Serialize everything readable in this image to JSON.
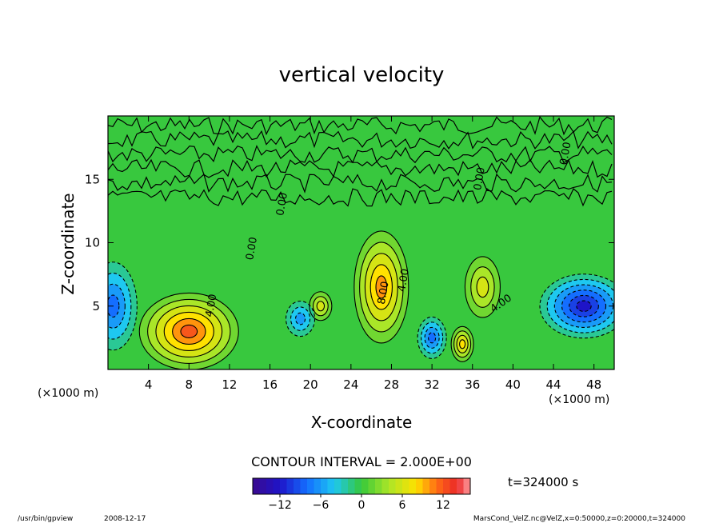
{
  "chart_data": {
    "type": "heatmap",
    "title": "vertical velocity",
    "xlabel": "X-coordinate",
    "ylabel": "Z-coordinate",
    "x_unit": "(×1000 m)",
    "y_unit": "(×1000 m)",
    "xlim": [
      0,
      50
    ],
    "ylim": [
      0,
      20
    ],
    "x_ticks": [
      4,
      8,
      12,
      16,
      20,
      24,
      28,
      32,
      36,
      40,
      44,
      48
    ],
    "x_tick_labels": [
      "4",
      "8",
      "12",
      "16",
      "20",
      "24",
      "28",
      "32",
      "36",
      "40",
      "44",
      "48"
    ],
    "y_ticks": [
      5,
      10,
      15
    ],
    "y_tick_labels": [
      "5",
      "10",
      "15"
    ],
    "contour_interval": "CONTOUR INTERVAL = 2.000E+00",
    "contour_labels": [
      "0.00",
      "0.00",
      "4.00",
      "8.00",
      "4.00",
      "4.00",
      "0.00",
      "0.00",
      "0.00"
    ],
    "colorbar": {
      "range": [
        -16,
        16
      ],
      "ticks": [
        -12,
        -6,
        0,
        6,
        12
      ],
      "tick_labels": [
        "−12",
        "−6",
        "0",
        "6",
        "12"
      ]
    },
    "features": [
      {
        "x": 8,
        "z": 3,
        "value": 12
      },
      {
        "x": 27,
        "z": 6.5,
        "value": 10
      },
      {
        "x": 35,
        "z": 2,
        "value": 8
      },
      {
        "x": 37,
        "z": 6.5,
        "value": 6
      },
      {
        "x": 21,
        "z": 5,
        "value": 6
      },
      {
        "x": 47,
        "z": 5,
        "value": -12
      },
      {
        "x": 32,
        "z": 2.5,
        "value": -8
      },
      {
        "x": 19,
        "z": 4,
        "value": -6
      },
      {
        "x": 0.5,
        "z": 5,
        "value": -8
      }
    ]
  },
  "annotations": {
    "time": "t=324000 s",
    "program": "/usr/bin/gpview",
    "date": "2008-12-17",
    "source": "MarsCond_VelZ.nc@VelZ,x=0:50000,z=0:20000,t=324000"
  },
  "colors": {
    "neg_min": "#3a0a8f",
    "neg_mid": "#1e6cff",
    "zero": "#36c83a",
    "pos_mid": "#ffe600",
    "pos_max": "#ff9da0"
  }
}
